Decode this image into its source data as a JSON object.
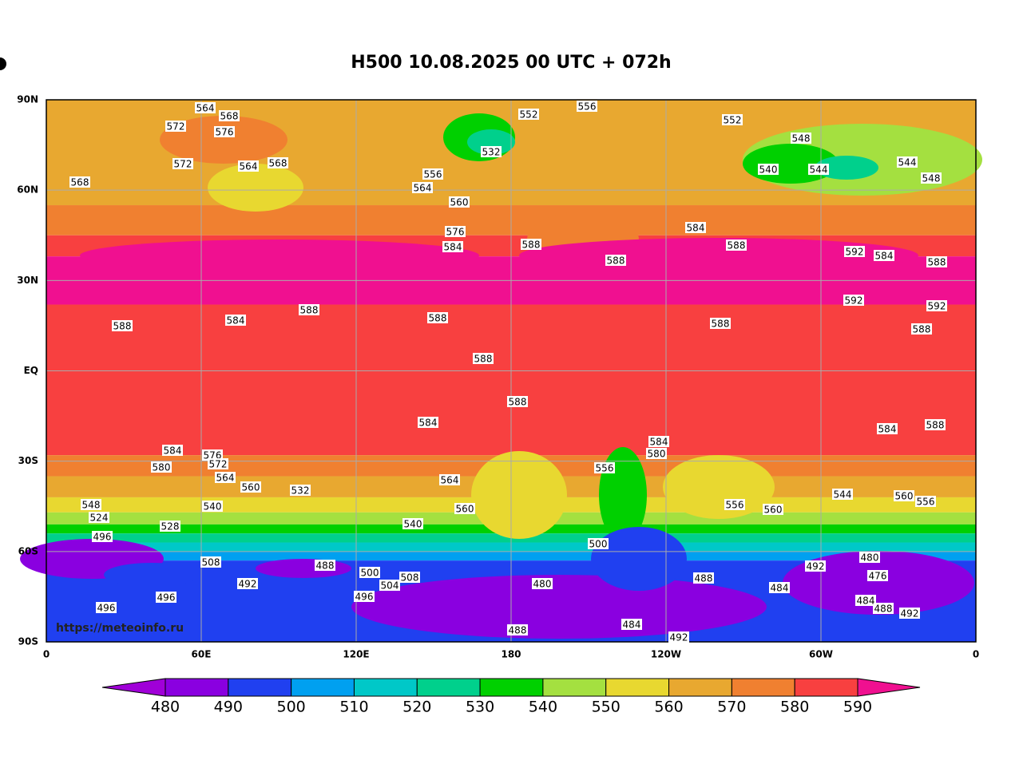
{
  "header": {
    "title": "H500  10.08.2025 00 UTC + 072h"
  },
  "watermark": "https://meteoinfo.ru",
  "map": {
    "xticks": [
      0,
      {
        "value": 60,
        "label": "60E"
      },
      {
        "value": 120,
        "label": "120E"
      },
      180,
      {
        "value": 240,
        "label": "120W"
      },
      {
        "value": 300,
        "label": "60W"
      },
      {
        "value": 360,
        "label": "0"
      }
    ],
    "yticks": [
      {
        "value": 90,
        "label": "90N"
      },
      {
        "value": 60,
        "label": "60N"
      },
      {
        "value": 30,
        "label": "30N"
      },
      {
        "value": 0,
        "label": "EQ"
      },
      {
        "value": -30,
        "label": "30S"
      },
      {
        "value": -60,
        "label": "60S"
      },
      {
        "value": -90,
        "label": "90S"
      }
    ],
    "xlim": [
      0,
      360
    ],
    "ylim": [
      -90,
      90
    ],
    "grid": true,
    "contour_labels": [
      564,
      568,
      572,
      576,
      572,
      564,
      568,
      568,
      556,
      564,
      560,
      532,
      552,
      556,
      552,
      548,
      540,
      544,
      544,
      548,
      576,
      584,
      588,
      588,
      584,
      588,
      592,
      584,
      588,
      592,
      592,
      588,
      584,
      588,
      588,
      588,
      588,
      588,
      588,
      584,
      584,
      588,
      584,
      580,
      584,
      580,
      576,
      572,
      564,
      560,
      564,
      560,
      556,
      560,
      560,
      556,
      544,
      548,
      524,
      496,
      540,
      528,
      540,
      532,
      556,
      500,
      480,
      476,
      488,
      488,
      480,
      496,
      496,
      492,
      496,
      488,
      484,
      492,
      492,
      488,
      484,
      500,
      504,
      508,
      508,
      492,
      484
    ]
  },
  "colorbar": {
    "levels": [
      480,
      490,
      500,
      510,
      520,
      530,
      540,
      550,
      560,
      570,
      580,
      590
    ],
    "colors": [
      "#a000d8",
      "#8a00e0",
      "#2040f0",
      "#00a0f0",
      "#00c8c8",
      "#00d08c",
      "#00d000",
      "#a4e040",
      "#e8d830",
      "#e8a830",
      "#f08030",
      "#f84040",
      "#f01090"
    ]
  }
}
